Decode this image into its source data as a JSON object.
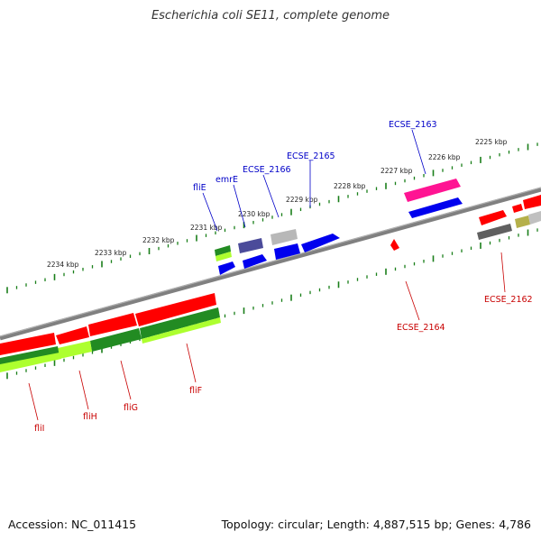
{
  "title": "Escherichia coli SE11, complete genome",
  "footer": {
    "accession": "Accession: NC_011415",
    "topology": "Topology: circular; Length: 4,887,515 bp; Genes: 4,786"
  },
  "scale_labels": [
    "2225 kbp",
    "2226 kbp",
    "2227 kbp",
    "2228 kbp",
    "2229 kbp",
    "2230 kbp",
    "2231 kbp",
    "2232 kbp",
    "2233 kbp",
    "2234 kbp"
  ],
  "genes_top": [
    "fliE",
    "emrE",
    "ECSE_2166",
    "ECSE_2165",
    "ECSE_2163"
  ],
  "genes_bottom": [
    "fliI",
    "fliH",
    "fliG",
    "fliF",
    "ECSE_2164",
    "ECSE_2162"
  ],
  "colors": {
    "backbone": "#7a7a7a",
    "gene_red": "#ff0000",
    "gene_blue": "#0000ee",
    "gene_pink": "#ff1493",
    "gene_green": "#228b22",
    "gene_lime": "#adff2f",
    "gene_gray": "#a0a0a0",
    "gene_dark": "#505050",
    "gene_olive": "#b5b04a",
    "gene_slate": "#4b4b9a",
    "tick_green": "#1a7f1a",
    "label_top": "#0000c8",
    "label_bottom": "#c80000"
  }
}
